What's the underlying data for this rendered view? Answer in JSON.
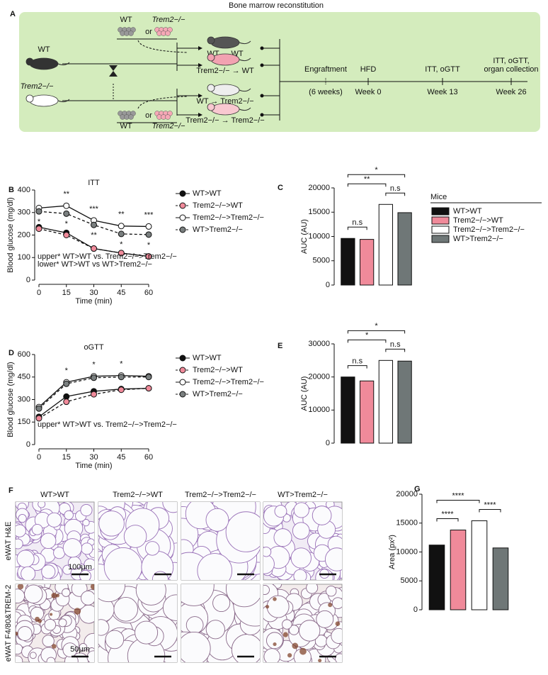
{
  "diagram": {
    "panel_label": "A",
    "title": "Bone marrow reconstitution",
    "donor_top": {
      "left": "WT",
      "or": "or",
      "right": "Trem2−/−"
    },
    "donor_bottom": {
      "left": "WT",
      "or": "or",
      "right": "Trem2−/−"
    },
    "recipients": [
      "WT",
      "Trem2−/−"
    ],
    "groups": [
      "WT → WT",
      "Trem2−/− → WT",
      "WT → Trem2−/−",
      "Trem2−/− → Trem2−/−"
    ],
    "timeline": [
      {
        "lines": [
          "Engraftment"
        ],
        "sub": "(6 weeks)"
      },
      {
        "lines": [
          "HFD"
        ],
        "sub": "Week 0"
      },
      {
        "lines": [
          "ITT, oGTT"
        ],
        "sub": "Week 13"
      },
      {
        "lines": [
          "ITT, oGTT,",
          "organ collection"
        ],
        "sub": "Week 26"
      }
    ]
  },
  "chart_data": [
    {
      "type": "line",
      "panel_label": "B",
      "title": "ITT",
      "xlabel": "Time (min)",
      "ylabel": "Blood glucose (mg/dl)",
      "x": [
        0,
        15,
        30,
        45,
        60
      ],
      "xlim": [
        0,
        60
      ],
      "xticks": [
        0,
        15,
        30,
        45,
        60
      ],
      "ylim": [
        0,
        400
      ],
      "yticks": [
        0,
        100,
        200,
        300,
        400
      ],
      "series": [
        {
          "name": "WT>WT",
          "color": "#111111",
          "line_style": "solid",
          "values": [
            235,
            210,
            140,
            120,
            105
          ]
        },
        {
          "name": "Trem2−/−>WT",
          "color": "#f08a9a",
          "line_style": "dashed",
          "values": [
            228,
            200,
            140,
            120,
            105
          ]
        },
        {
          "name": "Trem2−/−>Trem2−/−",
          "color": "#ffffff",
          "line_style": "solid",
          "values": [
            320,
            330,
            265,
            240,
            238
          ]
        },
        {
          "name": "WT>Trem2−/−",
          "color": "#7a7f7f",
          "line_style": "dashed",
          "values": [
            305,
            295,
            245,
            205,
            202
          ]
        }
      ],
      "significance_upper": [
        null,
        "**",
        "***",
        "**",
        "***"
      ],
      "significance_lower": [
        "*",
        "*",
        "**",
        "*",
        "*"
      ],
      "notes": [
        "upper* WT>WT vs. Trem2−/−>Trem2−/−",
        "lower* WT>WT vs WT>Trem2−/−"
      ]
    },
    {
      "type": "bar",
      "panel_label": "C",
      "ylabel": "AUC (AU)",
      "categories": [
        null,
        null,
        null,
        null
      ],
      "values": [
        9600,
        9400,
        16600,
        14900
      ],
      "colors": [
        "#111111",
        "#f08a9a",
        "#ffffff",
        "#6f7777"
      ],
      "ylim": [
        0,
        20000
      ],
      "yticks": [
        0,
        5000,
        10000,
        15000,
        20000
      ],
      "comparisons": [
        {
          "from": 0,
          "to": 1,
          "label": "n.s"
        },
        {
          "from": 2,
          "to": 3,
          "label": "n.s"
        },
        {
          "from": 0,
          "to": 2,
          "label": "**"
        },
        {
          "from": 0,
          "to": 3,
          "label": "*"
        }
      ],
      "legend_title": "Mice",
      "legend": [
        "WT>WT",
        "Trem2−/−>WT",
        "Trem2−/−>Trem2−/−",
        "WT>Trem2−/−"
      ]
    },
    {
      "type": "line",
      "panel_label": "D",
      "title": "oGTT",
      "xlabel": "Time (min)",
      "ylabel": "Blood glucose (mg/dl)",
      "x": [
        0,
        15,
        30,
        45,
        60
      ],
      "xlim": [
        0,
        60
      ],
      "xticks": [
        0,
        15,
        30,
        45,
        60
      ],
      "ylim": [
        0,
        600
      ],
      "yticks": [
        0,
        150,
        300,
        450,
        600
      ],
      "series": [
        {
          "name": "WT>WT",
          "color": "#111111",
          "line_style": "solid",
          "values": [
            185,
            320,
            355,
            370,
            375
          ]
        },
        {
          "name": "Trem2−/−>WT",
          "color": "#f08a9a",
          "line_style": "dashed",
          "values": [
            175,
            285,
            335,
            365,
            375
          ]
        },
        {
          "name": "Trem2−/−>Trem2−/−",
          "color": "#ffffff",
          "line_style": "solid",
          "values": [
            250,
            415,
            455,
            460,
            455
          ]
        },
        {
          "name": "WT>Trem2−/−",
          "color": "#7a7f7f",
          "line_style": "dashed",
          "values": [
            240,
            405,
            445,
            450,
            450
          ]
        }
      ],
      "significance_upper": [
        null,
        "*",
        "*",
        "*",
        null
      ],
      "notes": [
        "upper* WT>WT vs. Trem2−/−>Trem2−/−"
      ]
    },
    {
      "type": "bar",
      "panel_label": "E",
      "ylabel": "AUC (AU)",
      "categories": [
        null,
        null,
        null,
        null
      ],
      "values": [
        20000,
        18800,
        25000,
        24800
      ],
      "colors": [
        "#111111",
        "#f08a9a",
        "#ffffff",
        "#6f7777"
      ],
      "ylim": [
        0,
        30000
      ],
      "yticks": [
        0,
        10000,
        20000,
        30000
      ],
      "comparisons": [
        {
          "from": 0,
          "to": 1,
          "label": "n.s"
        },
        {
          "from": 2,
          "to": 3,
          "label": "n.s"
        },
        {
          "from": 0,
          "to": 2,
          "label": "*"
        },
        {
          "from": 0,
          "to": 3,
          "label": "*"
        }
      ]
    },
    {
      "type": "bar",
      "panel_label": "G",
      "ylabel": "Area (px²)",
      "categories": [
        null,
        null,
        null,
        null
      ],
      "values": [
        11200,
        13800,
        15400,
        10700
      ],
      "colors": [
        "#111111",
        "#f08a9a",
        "#ffffff",
        "#6f7777"
      ],
      "ylim": [
        0,
        20000
      ],
      "yticks": [
        0,
        5000,
        10000,
        15000,
        20000
      ],
      "comparisons": [
        {
          "from": 0,
          "to": 1,
          "label": "****"
        },
        {
          "from": 2,
          "to": 3,
          "label": "****"
        },
        {
          "from": 0,
          "to": 2,
          "label": "****"
        }
      ]
    }
  ],
  "micrographs": {
    "panel_label": "F",
    "columns": [
      "WT>WT",
      "Trem2−/−>WT",
      "Trem2−/−>Trem2−/−",
      "WT>Trem2−/−"
    ],
    "rows": [
      "eWAT H&E",
      "eWAT F4/80&TREM-2"
    ],
    "scale_bars": [
      "100μm",
      "50μm"
    ]
  }
}
